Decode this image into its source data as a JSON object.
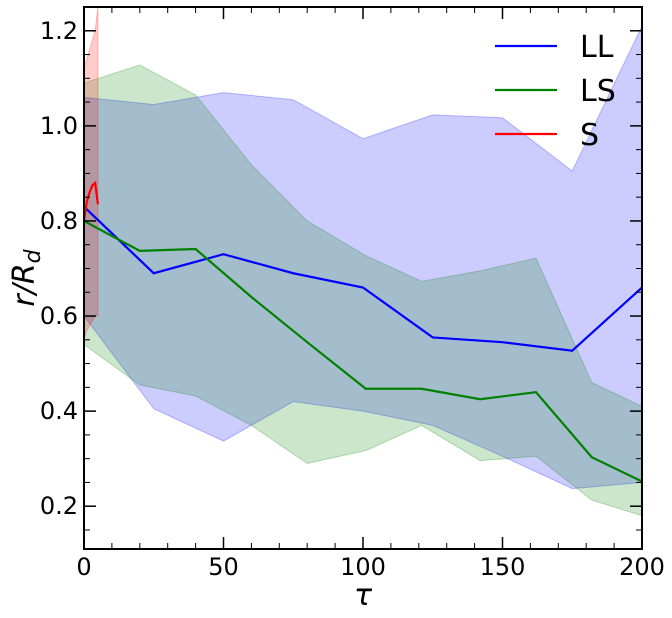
{
  "chart_data": {
    "type": "line",
    "xlabel": "τ",
    "ylabel_main": "r/R",
    "ylabel_sub": "d",
    "xlim": [
      0,
      200
    ],
    "ylim": [
      0.11,
      1.25
    ],
    "xticks": [
      0,
      50,
      100,
      150,
      200
    ],
    "yticks": [
      0.2,
      0.4,
      0.6,
      0.8,
      1.0,
      1.2
    ],
    "legend_position": "top-right",
    "series": [
      {
        "name": "LL",
        "color": "#0000ff",
        "band_color": "#0000ff",
        "band_opacity": 0.2,
        "x": [
          0,
          25,
          50,
          75,
          100,
          125,
          150,
          175,
          200
        ],
        "y": [
          0.83,
          0.69,
          0.73,
          0.69,
          0.66,
          0.555,
          0.545,
          0.527,
          0.66
        ],
        "upper": [
          1.06,
          1.045,
          1.07,
          1.055,
          0.973,
          1.023,
          1.017,
          0.905,
          1.21
        ],
        "lower": [
          0.6,
          0.405,
          0.337,
          0.42,
          0.4,
          0.37,
          0.305,
          0.237,
          0.25
        ]
      },
      {
        "name": "LS",
        "color": "#008000",
        "band_color": "#008000",
        "band_opacity": 0.2,
        "x": [
          0,
          20,
          40,
          60,
          80,
          101,
          121,
          142,
          162,
          182,
          200
        ],
        "y": [
          0.8,
          0.737,
          0.741,
          0.64,
          0.545,
          0.447,
          0.447,
          0.425,
          0.44,
          0.303,
          0.252
        ],
        "upper": [
          1.09,
          1.128,
          1.065,
          0.918,
          0.8,
          0.727,
          0.673,
          0.695,
          0.722,
          0.46,
          0.41
        ],
        "lower": [
          0.54,
          0.455,
          0.432,
          0.37,
          0.29,
          0.317,
          0.37,
          0.296,
          0.305,
          0.213,
          0.18
        ]
      },
      {
        "name": "S",
        "color": "#ff0000",
        "band_color": "#ff0000",
        "band_opacity": 0.2,
        "x": [
          0,
          1,
          2,
          3,
          4,
          5
        ],
        "y": [
          0.8,
          0.84,
          0.86,
          0.875,
          0.88,
          0.835
        ],
        "upper": [
          1.12,
          1.14,
          1.16,
          1.18,
          1.2,
          1.25
        ],
        "lower": [
          0.55,
          0.57,
          0.58,
          0.59,
          0.6,
          0.6
        ]
      }
    ]
  }
}
